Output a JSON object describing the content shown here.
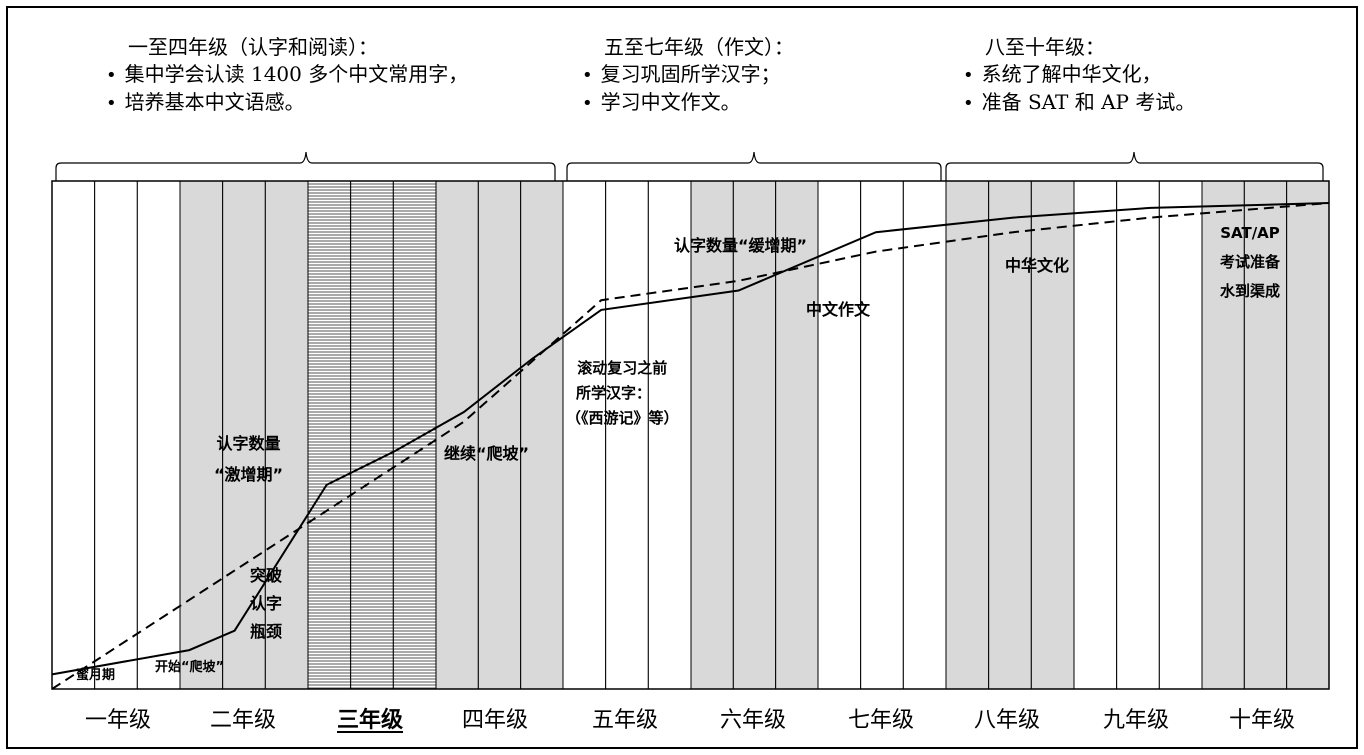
{
  "stages": [
    {
      "title": "一至四年级（认字和阅读）：",
      "points": [
        "集中学会认读 1400 多个中文常用字，",
        "培养基本中文语感。"
      ]
    },
    {
      "title": "五至七年级（作文）：",
      "points": [
        "复习巩固所学汉字；",
        "学习中文作文。"
      ]
    },
    {
      "title": "八至十年级：",
      "points": [
        "系统了解中华文化，",
        "准备 SAT 和 AP 考试。"
      ]
    }
  ],
  "grades": [
    "一年级",
    "二年级",
    "三年级",
    "四年级",
    "五年级",
    "六年级",
    "七年级",
    "八年级",
    "九年级",
    "十年级"
  ],
  "emphasized_grade": "三年级",
  "annotations": {
    "honeymoon": "蜜月期",
    "start_climb": "开始“爬坡”",
    "breakthrough": [
      "突破",
      "认字",
      "瓶颈"
    ],
    "surge": [
      "认字数量",
      "“激增期”"
    ],
    "continue_climb": "继续“爬坡”",
    "review": [
      "滚动复习之前",
      "所学汉字：",
      "（《西游记》等）"
    ],
    "slow_growth": "认字数量“缓增期”",
    "composition": "中文作文",
    "culture": "中华文化",
    "sat_ap": [
      "SAT/AP",
      "考试准备",
      "水到渠成"
    ]
  },
  "colors": {
    "shaded_column": "#d9d9d9",
    "grid": "#000000",
    "background": "#ffffff"
  },
  "column_pattern": {
    "description_shading_per_grade": [
      "white",
      "gray",
      "striped",
      "gray",
      "white",
      "gray",
      "white",
      "gray",
      "white",
      "gray"
    ]
  },
  "curves": {
    "solid": {
      "style": "solid",
      "points_grade_fraction": [
        [
          0,
          0.03
        ],
        [
          1,
          0.08
        ],
        [
          1.33,
          0.12
        ],
        [
          2.0,
          0.42
        ],
        [
          2.5,
          0.49
        ],
        [
          3.0,
          0.57
        ],
        [
          3.5,
          0.68
        ],
        [
          4.0,
          0.78
        ],
        [
          5.0,
          0.82
        ],
        [
          6.0,
          0.94
        ],
        [
          7.0,
          0.97
        ],
        [
          8.0,
          0.99
        ],
        [
          9.3,
          1.0
        ]
      ]
    },
    "dashed": {
      "style": "dashed",
      "points_grade_fraction": [
        [
          0,
          0.0
        ],
        [
          3.0,
          0.55
        ],
        [
          4.0,
          0.8
        ],
        [
          5.0,
          0.84
        ],
        [
          6.0,
          0.9
        ],
        [
          7.0,
          0.94
        ],
        [
          8.0,
          0.97
        ],
        [
          9.3,
          1.0
        ]
      ]
    }
  }
}
